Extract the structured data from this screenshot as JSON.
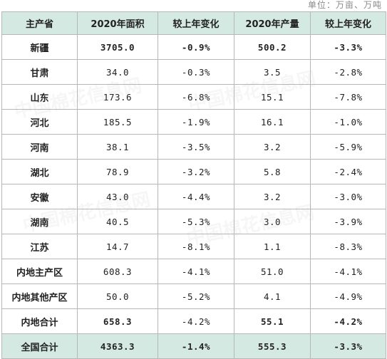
{
  "unit_label": "单位：万亩、万吨",
  "watermark_text": "中国棉花信息网",
  "columns": [
    "主产省",
    "2020年面积",
    "较上年变化",
    "2020年产量",
    "较上年变化"
  ],
  "rows": [
    {
      "name": "新疆",
      "area": "3705.0",
      "area_change": "-0.9%",
      "output": "500.2",
      "output_change": "-3.3%",
      "bold": [
        true,
        true,
        true,
        true
      ]
    },
    {
      "name": "甘肃",
      "area": "34.0",
      "area_change": "-0.3%",
      "output": "3.5",
      "output_change": "-2.8%",
      "bold": [
        false,
        false,
        false,
        false
      ]
    },
    {
      "name": "山东",
      "area": "173.6",
      "area_change": "-6.8%",
      "output": "15.1",
      "output_change": "-7.8%",
      "bold": [
        false,
        false,
        false,
        false
      ]
    },
    {
      "name": "河北",
      "area": "185.5",
      "area_change": "-1.9%",
      "output": "16.1",
      "output_change": "-1.0%",
      "bold": [
        false,
        false,
        false,
        false
      ]
    },
    {
      "name": "河南",
      "area": "38.1",
      "area_change": "-3.5%",
      "output": "3.2",
      "output_change": "-5.9%",
      "bold": [
        false,
        false,
        false,
        false
      ]
    },
    {
      "name": "湖北",
      "area": "78.9",
      "area_change": "-3.2%",
      "output": "5.8",
      "output_change": "-2.4%",
      "bold": [
        false,
        false,
        false,
        false
      ]
    },
    {
      "name": "安徽",
      "area": "43.0",
      "area_change": "-4.4%",
      "output": "3.2",
      "output_change": "-3.0%",
      "bold": [
        false,
        false,
        false,
        false
      ]
    },
    {
      "name": "湖南",
      "area": "40.5",
      "area_change": "-5.3%",
      "output": "3.0",
      "output_change": "-3.9%",
      "bold": [
        false,
        false,
        false,
        false
      ]
    },
    {
      "name": "江苏",
      "area": "14.7",
      "area_change": "-8.1%",
      "output": "1.1",
      "output_change": "-8.3%",
      "bold": [
        false,
        false,
        false,
        false
      ]
    },
    {
      "name": "内地主产区",
      "area": "608.3",
      "area_change": "-4.1%",
      "output": "51.0",
      "output_change": "-4.1%",
      "bold": [
        false,
        false,
        false,
        false
      ]
    },
    {
      "name": "内地其他产区",
      "area": "50.0",
      "area_change": "-5.2%",
      "output": "4.1",
      "output_change": "-4.9%",
      "bold": [
        false,
        false,
        false,
        false
      ]
    },
    {
      "name": "内地合计",
      "area": "658.3",
      "area_change": "-4.2%",
      "output": "55.1",
      "output_change": "-4.2%",
      "bold": [
        true,
        false,
        true,
        true
      ]
    },
    {
      "name": "全国合计",
      "area": "4363.3",
      "area_change": "-1.4%",
      "output": "555.3",
      "output_change": "-3.3%",
      "bold": [
        true,
        true,
        true,
        true
      ],
      "highlight": true
    }
  ]
}
